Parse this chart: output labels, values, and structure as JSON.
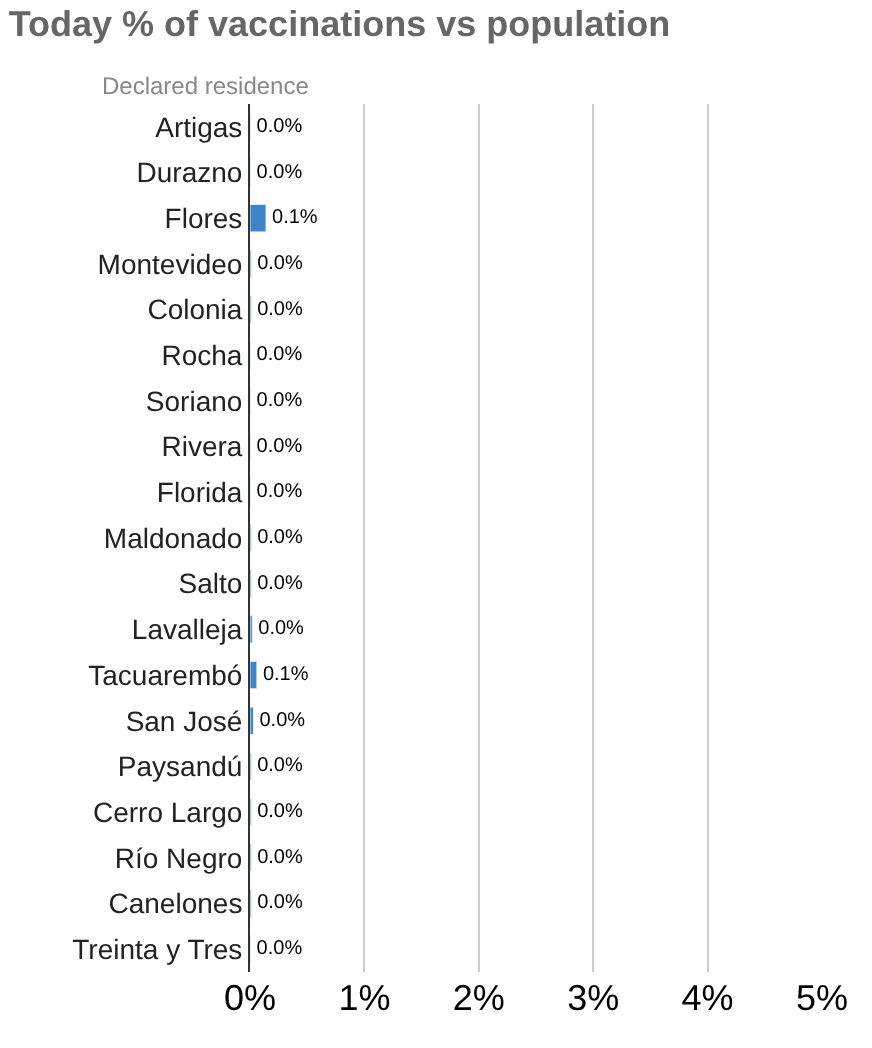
{
  "chart_data": {
    "type": "bar",
    "orientation": "horizontal",
    "title": "Today % of vaccinations vs population",
    "subtitle": "Declared residence",
    "categories": [
      "Artigas",
      "Durazno",
      "Flores",
      "Montevideo",
      "Colonia",
      "Rocha",
      "Soriano",
      "Rivera",
      "Florida",
      "Maldonado",
      "Salto",
      "Lavalleja",
      "Tacuarembó",
      "San José",
      "Paysandú",
      "Cerro Largo",
      "Río Negro",
      "Canelones",
      "Treinta y Tres"
    ],
    "values": [
      0.005,
      0.005,
      0.14,
      0.01,
      0.01,
      0.005,
      0.005,
      0.005,
      0.005,
      0.01,
      0.01,
      0.02,
      0.06,
      0.03,
      0.01,
      0.01,
      0.01,
      0.01,
      0.005
    ],
    "value_labels": [
      "0.0%",
      "0.0%",
      "0.1%",
      "0.0%",
      "0.0%",
      "0.0%",
      "0.0%",
      "0.0%",
      "0.0%",
      "0.0%",
      "0.0%",
      "0.0%",
      "0.1%",
      "0.0%",
      "0.0%",
      "0.0%",
      "0.0%",
      "0.0%",
      "0.0%"
    ],
    "color": "#3d85c6",
    "xlim": [
      0,
      5
    ],
    "xticks": [
      {
        "value": 0,
        "label": "0%"
      },
      {
        "value": 1,
        "label": "1%"
      },
      {
        "value": 2,
        "label": "2%"
      },
      {
        "value": 3,
        "label": "3%"
      },
      {
        "value": 4,
        "label": "4%"
      },
      {
        "value": 5,
        "label": "5%"
      }
    ],
    "grid": "x",
    "legend": false
  }
}
